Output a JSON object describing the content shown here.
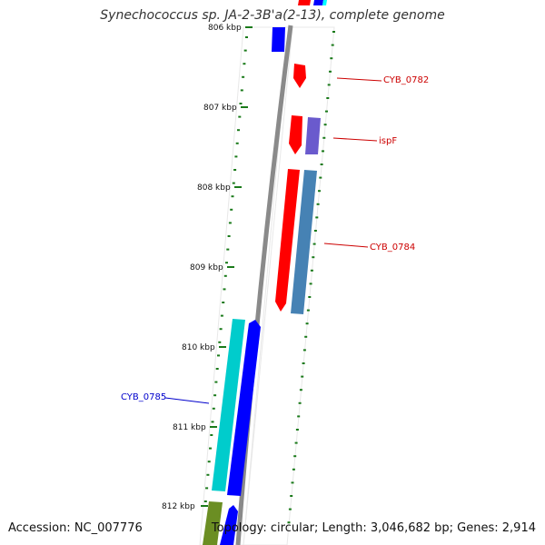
{
  "title": "Synechococcus sp. JA-2-3B'a(2-13), complete genome",
  "footer": {
    "accession": "Accession: NC_007776",
    "summary": "Topology: circular; Length: 3,046,682 bp; Genes: 2,914"
  },
  "ticks": [
    {
      "label": "806 kbp"
    },
    {
      "label": "807 kbp"
    },
    {
      "label": "808 kbp"
    },
    {
      "label": "809 kbp"
    },
    {
      "label": "810 kbp"
    },
    {
      "label": "811 kbp"
    },
    {
      "label": "812 kbp"
    }
  ],
  "gene_labels": [
    {
      "text": "CYB_0782",
      "color": "#cc0000"
    },
    {
      "text": "ispF",
      "color": "#cc0000"
    },
    {
      "text": "CYB_0784",
      "color": "#cc0000"
    },
    {
      "text": "CYB_0785",
      "color": "#0000cc"
    }
  ],
  "colors": {
    "backbone": "#8a8a8a",
    "tick": "#1a7a1a",
    "red_gene": "#ff0000",
    "blue_gene": "#0000ff",
    "purple_gene": "#6a5acd",
    "steel_gene": "#4682b4",
    "cyan_gene": "#00cccc",
    "olive_gene": "#6b8e23"
  }
}
